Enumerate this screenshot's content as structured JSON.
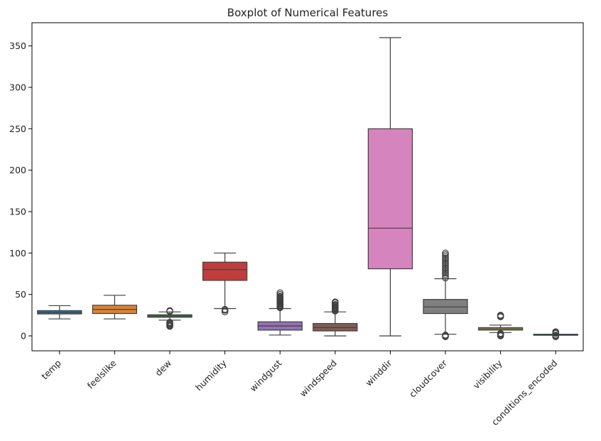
{
  "chart_data": {
    "type": "boxplot",
    "title": "Boxplot of Numerical Features",
    "xlabel": "",
    "ylabel": "",
    "ylim": [
      -18,
      378
    ],
    "yticks": [
      0,
      50,
      100,
      150,
      200,
      250,
      300,
      350
    ],
    "grid": false,
    "legend": "none",
    "categories": [
      "temp",
      "feelslike",
      "dew",
      "humidity",
      "windgust",
      "windspeed",
      "winddir",
      "cloudcover",
      "visibility",
      "conditions_encoded"
    ],
    "boxes": [
      {
        "category": "temp",
        "color": "#3274a1",
        "whisker_low": 20.5,
        "q1": 26.5,
        "median": 28.5,
        "q3": 30.5,
        "whisker_high": 36.5,
        "outliers": []
      },
      {
        "category": "feelslike",
        "color": "#e1812c",
        "whisker_low": 20.5,
        "q1": 27,
        "median": 32,
        "q3": 37,
        "whisker_high": 49,
        "outliers": []
      },
      {
        "category": "dew",
        "color": "#3a923a",
        "whisker_low": 19,
        "q1": 22.5,
        "median": 24,
        "q3": 25.5,
        "whisker_high": 29,
        "outliers": [
          11.5,
          12.5,
          13.5,
          14.5,
          15.5,
          16.5,
          29.5,
          30.5
        ]
      },
      {
        "category": "humidity",
        "color": "#c03d3e",
        "whisker_low": 33,
        "q1": 67,
        "median": 80,
        "q3": 89,
        "whisker_high": 100,
        "outliers": [
          29,
          31,
          32
        ]
      },
      {
        "category": "windgust",
        "color": "#9372b2",
        "whisker_low": 1,
        "q1": 7,
        "median": 12,
        "q3": 17,
        "whisker_high": 33,
        "outliers": [
          34,
          35,
          36,
          37,
          38,
          39,
          40,
          41,
          42,
          43,
          44,
          45,
          46,
          47,
          48,
          50,
          52
        ]
      },
      {
        "category": "windspeed",
        "color": "#845b53",
        "whisker_low": 0,
        "q1": 6,
        "median": 10,
        "q3": 15,
        "whisker_high": 29,
        "outliers": [
          30,
          31,
          32,
          33,
          34,
          35,
          36,
          37,
          38,
          40,
          41
        ]
      },
      {
        "category": "winddir",
        "color": "#d684bd",
        "whisker_low": 0,
        "q1": 81,
        "median": 130,
        "q3": 250,
        "whisker_high": 360,
        "outliers": []
      },
      {
        "category": "cloudcover",
        "color": "#7f7f7f",
        "whisker_low": 2,
        "q1": 27,
        "median": 35,
        "q3": 44,
        "whisker_high": 69,
        "outliers": [
          -1,
          0,
          1,
          70,
          72,
          74,
          76,
          78,
          80,
          82,
          84,
          86,
          88,
          90,
          92,
          94,
          96,
          98,
          100
        ]
      },
      {
        "category": "visibility",
        "color": "#a9aa35",
        "whisker_low": 4,
        "q1": 7,
        "median": 8.5,
        "q3": 10,
        "whisker_high": 13,
        "outliers": [
          0,
          1,
          2,
          3,
          23,
          24,
          25
        ]
      },
      {
        "category": "conditions_encoded",
        "color": "#2ed0dd",
        "whisker_low": 2,
        "q1": 2,
        "median": 2,
        "q3": 2,
        "whisker_high": 2,
        "outliers": [
          -1,
          0,
          1,
          3,
          4,
          5
        ]
      }
    ]
  }
}
